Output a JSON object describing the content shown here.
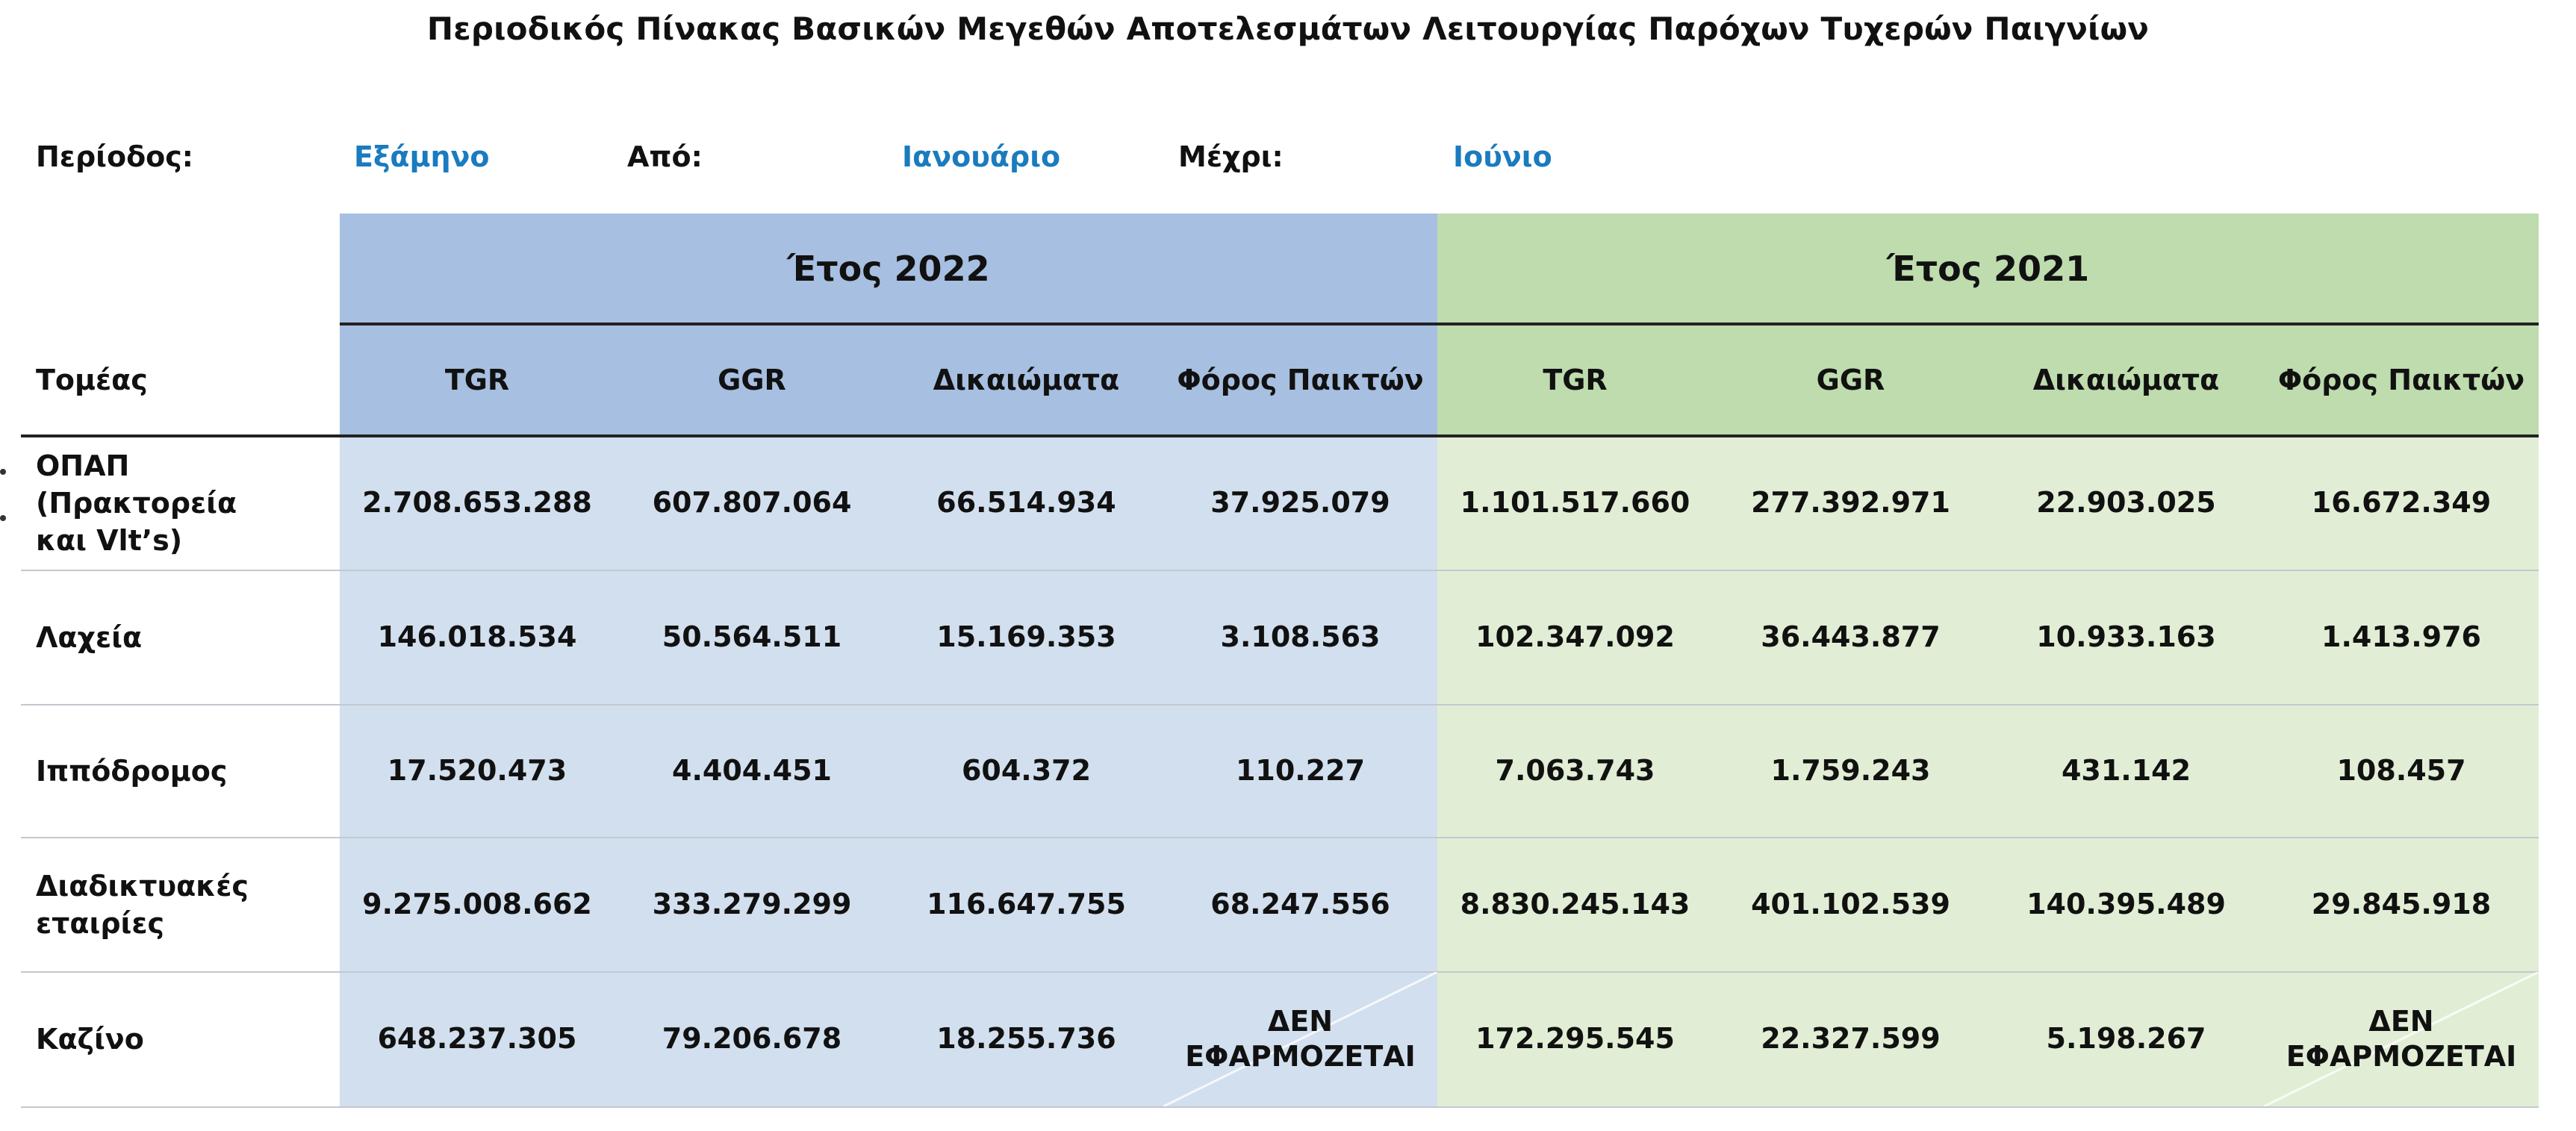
{
  "title": "Περιοδικός Πίνακας Βασικών Μεγεθών Αποτελεσμάτων Λειτουργίας Παρόχων Τυχερών Παιγνίων",
  "period": {
    "period_label": "Περίοδος:",
    "period_value": "Εξάμηνο",
    "from_label": "Από:",
    "from_value": "Ιανουάριο",
    "to_label": "Μέχρι:",
    "to_value": "Ιούνιο"
  },
  "table": {
    "sector_header": "Τομέας",
    "year_2022": "Έτος 2022",
    "year_2021": "Έτος 2021",
    "columns_2022": [
      "TGR",
      "GGR",
      "Δικαιώματα",
      "Φόρος Παικτών"
    ],
    "columns_2021": [
      "TGR",
      "GGR",
      "Δικαιώματα",
      "Φόρος Παικτών"
    ],
    "rows": [
      {
        "label": "ΟΠΑΠ (Πρακτορεία και Vlt's)",
        "label_lines": [
          "ΟΠΑΠ",
          "(Πρακτορεία",
          "και Vlt’s)"
        ],
        "y2022": [
          "2.708.653.288",
          "607.807.064",
          "66.514.934",
          "37.925.079"
        ],
        "y2021": [
          "1.101.517.660",
          "277.392.971",
          "22.903.025",
          "16.672.349"
        ]
      },
      {
        "label": "Λαχεία",
        "label_lines": [
          "Λαχεία"
        ],
        "y2022": [
          "146.018.534",
          "50.564.511",
          "15.169.353",
          "3.108.563"
        ],
        "y2021": [
          "102.347.092",
          "36.443.877",
          "10.933.163",
          "1.413.976"
        ]
      },
      {
        "label": "Ιππόδρομος",
        "label_lines": [
          "Ιππόδρομος"
        ],
        "y2022": [
          "17.520.473",
          "4.404.451",
          "604.372",
          "110.227"
        ],
        "y2021": [
          "7.063.743",
          "1.759.243",
          "431.142",
          "108.457"
        ]
      },
      {
        "label": "Διαδικτυακές εταιρίες",
        "label_lines": [
          "Διαδικτυακές",
          "εταιρίες"
        ],
        "y2022": [
          "9.275.008.662",
          "333.279.299",
          "116.647.755",
          "68.247.556"
        ],
        "y2021": [
          "8.830.245.143",
          "401.102.539",
          "140.395.489",
          "29.845.918"
        ]
      },
      {
        "label": "Καζίνο",
        "label_lines": [
          "Καζίνο"
        ],
        "y2022": [
          "648.237.305",
          "79.206.678",
          "18.255.736",
          "ΔΕΝ ΕΦΑΡΜΟΖΕΤΑΙ"
        ],
        "y2021": [
          "172.295.545",
          "22.327.599",
          "5.198.267",
          "ΔΕΝ ΕΦΑΡΜΟΖΕΤΑΙ"
        ]
      }
    ]
  },
  "colors": {
    "year_2022_header": "#a7bfe0",
    "year_2022_body": "#d2dfee",
    "year_2021_header": "#bedcae",
    "year_2021_body": "#e1eed5",
    "accent_blue_text": "#1a7bbf"
  }
}
